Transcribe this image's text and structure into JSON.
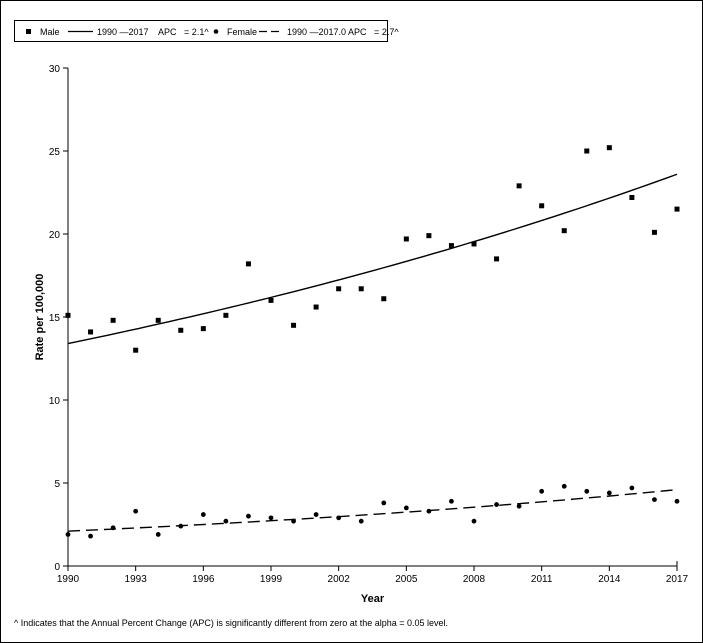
{
  "legend": {
    "male_label": "Male",
    "male_fit_label": "1990 —2017    APC   = 2.1^",
    "female_label": "Female",
    "female_fit_label": "1990 —2017.0 APC   = 2.7^"
  },
  "footnote": "^ Indicates that the Annual Percent Change (APC) is significantly different from zero at the alpha = 0.05 level.",
  "chart_data": {
    "type": "scatter",
    "xlabel": "Year",
    "ylabel": "Rate per 100,000",
    "xlim": [
      1990,
      2017
    ],
    "ylim": [
      0,
      30
    ],
    "x_ticks": [
      1990,
      1993,
      1996,
      1999,
      2002,
      2005,
      2008,
      2011,
      2014,
      2017
    ],
    "y_ticks": [
      0,
      5,
      10,
      15,
      20,
      25,
      30
    ],
    "grid": false,
    "legend_position": "top-left",
    "series": [
      {
        "name": "Male",
        "marker": "square",
        "x": [
          1990,
          1991,
          1992,
          1993,
          1994,
          1995,
          1996,
          1997,
          1998,
          1999,
          2000,
          2001,
          2002,
          2003,
          2004,
          2005,
          2006,
          2007,
          2008,
          2009,
          2010,
          2011,
          2012,
          2013,
          2014,
          2015,
          2016,
          2017
        ],
        "values": [
          15.1,
          14.1,
          14.8,
          13.0,
          14.8,
          14.2,
          14.3,
          15.1,
          18.2,
          16.0,
          14.5,
          15.6,
          16.7,
          16.7,
          16.1,
          19.7,
          19.9,
          19.3,
          19.4,
          18.5,
          22.9,
          21.7,
          20.2,
          25.0,
          25.2,
          22.2,
          20.1,
          21.5
        ],
        "fit": {
          "label": "1990 —2017    APC   = 2.1^",
          "start": 13.4,
          "end": 23.6,
          "line_style": "solid"
        }
      },
      {
        "name": "Female",
        "marker": "circle",
        "x": [
          1990,
          1991,
          1992,
          1993,
          1994,
          1995,
          1996,
          1997,
          1998,
          1999,
          2000,
          2001,
          2002,
          2003,
          2004,
          2005,
          2006,
          2007,
          2008,
          2009,
          2010,
          2011,
          2012,
          2013,
          2014,
          2015,
          2016,
          2017
        ],
        "values": [
          1.9,
          1.8,
          2.3,
          3.3,
          1.9,
          2.4,
          3.1,
          2.7,
          3.0,
          2.9,
          2.7,
          3.1,
          2.9,
          2.7,
          3.8,
          3.5,
          3.3,
          3.9,
          2.7,
          3.7,
          3.6,
          4.5,
          4.8,
          4.5,
          4.4,
          4.7,
          4.0,
          3.9
        ],
        "fit": {
          "label": "1990 —2017.0 APC   = 2.7^",
          "start": 2.1,
          "end": 4.6,
          "line_style": "dashed"
        }
      }
    ]
  }
}
